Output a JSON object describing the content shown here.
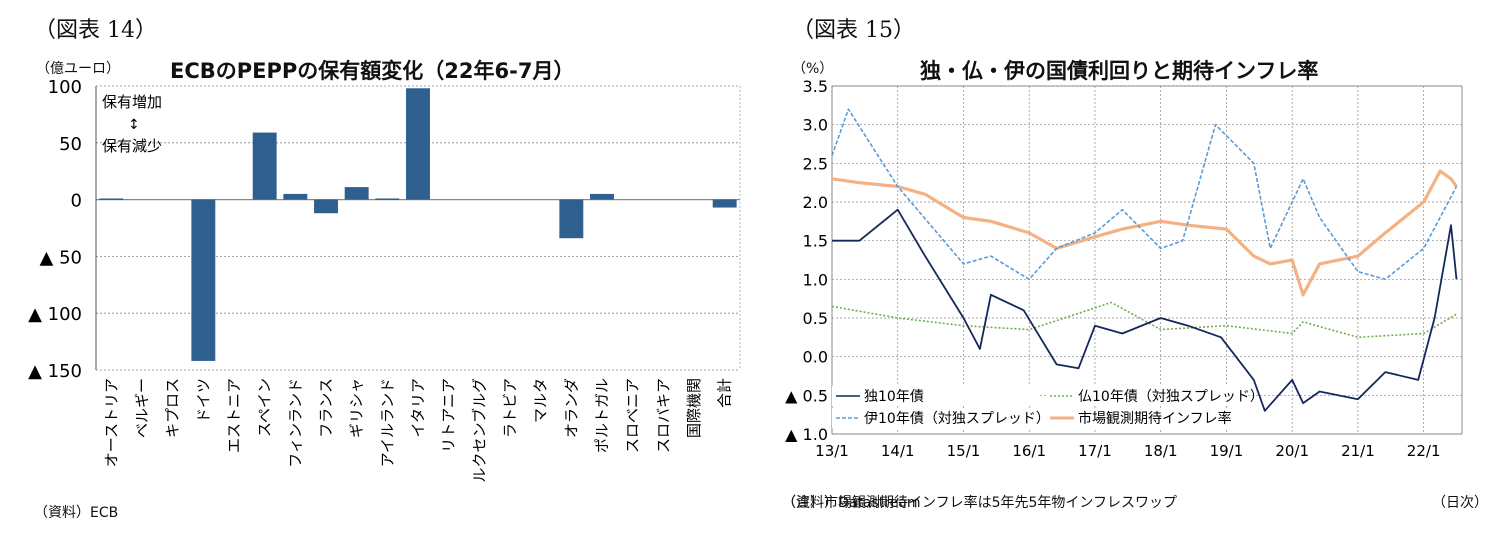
{
  "left_panel": {
    "figure_label": "（図表 14）",
    "unit": "（億ユーロ）",
    "source": "（資料）ECB",
    "annotation": {
      "top": "保有増加",
      "arrow": "↕",
      "bottom": "保有減少"
    },
    "colors": {
      "bar": "#2f5f8f",
      "grid": "#888888"
    }
  },
  "right_panel": {
    "figure_label": "（図表 15）",
    "unit": "（%）",
    "note": "（注）市場観測期待インフレ率は5年先5年物インフレスワップ",
    "source": "（資料）Datastream",
    "x_unit": "（日次）"
  },
  "chart_data": [
    {
      "type": "bar",
      "title": "ECBのPEPPの保有額変化（22年6-7月）",
      "ylabel": "（億ユーロ）",
      "ylim": [
        -150,
        100
      ],
      "y_ticks": [
        100,
        50,
        0,
        -50,
        -100,
        -150
      ],
      "y_tick_labels": [
        "100",
        "50",
        "0",
        "▲ 50",
        "▲ 100",
        "▲ 150"
      ],
      "categories": [
        "オーストリア",
        "ベルギー",
        "キプロス",
        "ドイツ",
        "エストニア",
        "スペイン",
        "フィンランド",
        "フランス",
        "ギリシャ",
        "アイルランド",
        "イタリア",
        "リトアニア",
        "ルクセンブルグ",
        "ラトビア",
        "マルタ",
        "オランダ",
        "ポルトガル",
        "スロベニア",
        "スロバキア",
        "国際機関",
        "合計"
      ],
      "values": [
        1,
        0,
        0,
        -142,
        0,
        59,
        5,
        -12,
        11,
        1,
        98,
        0,
        0,
        0,
        0,
        -34,
        5,
        0,
        0,
        0,
        -7
      ],
      "grid": true
    },
    {
      "type": "line",
      "title": "独・仏・伊の国債利回りと期待インフレ率",
      "ylabel": "（%）",
      "ylim": [
        -1.0,
        3.5
      ],
      "y_ticks": [
        3.5,
        3.0,
        2.5,
        2.0,
        1.5,
        1.0,
        0.5,
        0.0,
        -0.5,
        -1.0
      ],
      "y_tick_labels": [
        "3.5",
        "3.0",
        "2.5",
        "2.0",
        "1.5",
        "1.0",
        "0.5",
        "0.0",
        "▲ 0.5",
        "▲ 1.0"
      ],
      "x_tick_labels": [
        "13/1",
        "14/1",
        "15/1",
        "16/1",
        "17/1",
        "18/1",
        "19/1",
        "20/1",
        "21/1",
        "22/1"
      ],
      "x_range": [
        "2013-01",
        "2022-08"
      ],
      "grid": true,
      "legend_position": "bottom-left",
      "series": [
        {
          "name": "独10年債",
          "color": "#14285a",
          "style": "solid",
          "x": [
            "2013-01",
            "2013-06",
            "2014-01",
            "2014-06",
            "2015-01",
            "2015-04",
            "2015-06",
            "2015-12",
            "2016-06",
            "2016-10",
            "2017-01",
            "2017-06",
            "2018-01",
            "2018-06",
            "2018-12",
            "2019-06",
            "2019-08",
            "2020-01",
            "2020-03",
            "2020-06",
            "2021-01",
            "2021-06",
            "2021-12",
            "2022-03",
            "2022-06",
            "2022-07"
          ],
          "y": [
            1.5,
            1.5,
            1.9,
            1.3,
            0.5,
            0.1,
            0.8,
            0.6,
            -0.1,
            -0.15,
            0.4,
            0.3,
            0.5,
            0.4,
            0.25,
            -0.3,
            -0.7,
            -0.3,
            -0.6,
            -0.45,
            -0.55,
            -0.2,
            -0.3,
            0.5,
            1.7,
            1.0
          ]
        },
        {
          "name": "仏10年債（対独スプレッド）",
          "color": "#70ad47",
          "style": "dotted",
          "x": [
            "2013-01",
            "2014-01",
            "2015-01",
            "2016-01",
            "2017-04",
            "2018-01",
            "2019-01",
            "2020-01",
            "2020-03",
            "2021-01",
            "2022-01",
            "2022-07"
          ],
          "y": [
            0.65,
            0.5,
            0.4,
            0.35,
            0.7,
            0.35,
            0.4,
            0.3,
            0.45,
            0.25,
            0.3,
            0.55
          ]
        },
        {
          "name": "伊10年債（対独スプレッド）",
          "color": "#5b9bd5",
          "style": "dashed",
          "x": [
            "2013-01",
            "2013-04",
            "2014-01",
            "2015-01",
            "2015-06",
            "2016-01",
            "2016-06",
            "2017-01",
            "2017-06",
            "2018-01",
            "2018-05",
            "2018-11",
            "2019-06",
            "2019-09",
            "2020-03",
            "2020-06",
            "2021-01",
            "2021-06",
            "2022-01",
            "2022-07"
          ],
          "y": [
            2.6,
            3.2,
            2.2,
            1.2,
            1.3,
            1.0,
            1.4,
            1.6,
            1.9,
            1.4,
            1.5,
            3.0,
            2.5,
            1.4,
            2.3,
            1.8,
            1.1,
            1.0,
            1.4,
            2.2
          ]
        },
        {
          "name": "市場観測期待インフレ率",
          "color": "#f4b183",
          "style": "solid",
          "x": [
            "2013-01",
            "2013-06",
            "2014-01",
            "2014-06",
            "2015-01",
            "2015-06",
            "2016-01",
            "2016-06",
            "2017-01",
            "2017-06",
            "2018-01",
            "2018-06",
            "2019-01",
            "2019-06",
            "2019-09",
            "2020-01",
            "2020-03",
            "2020-06",
            "2021-01",
            "2021-06",
            "2022-01",
            "2022-04",
            "2022-06",
            "2022-07"
          ],
          "y": [
            2.3,
            2.25,
            2.2,
            2.1,
            1.8,
            1.75,
            1.6,
            1.4,
            1.55,
            1.65,
            1.75,
            1.7,
            1.65,
            1.3,
            1.2,
            1.25,
            0.8,
            1.2,
            1.3,
            1.6,
            2.0,
            2.4,
            2.3,
            2.2
          ]
        }
      ]
    }
  ]
}
